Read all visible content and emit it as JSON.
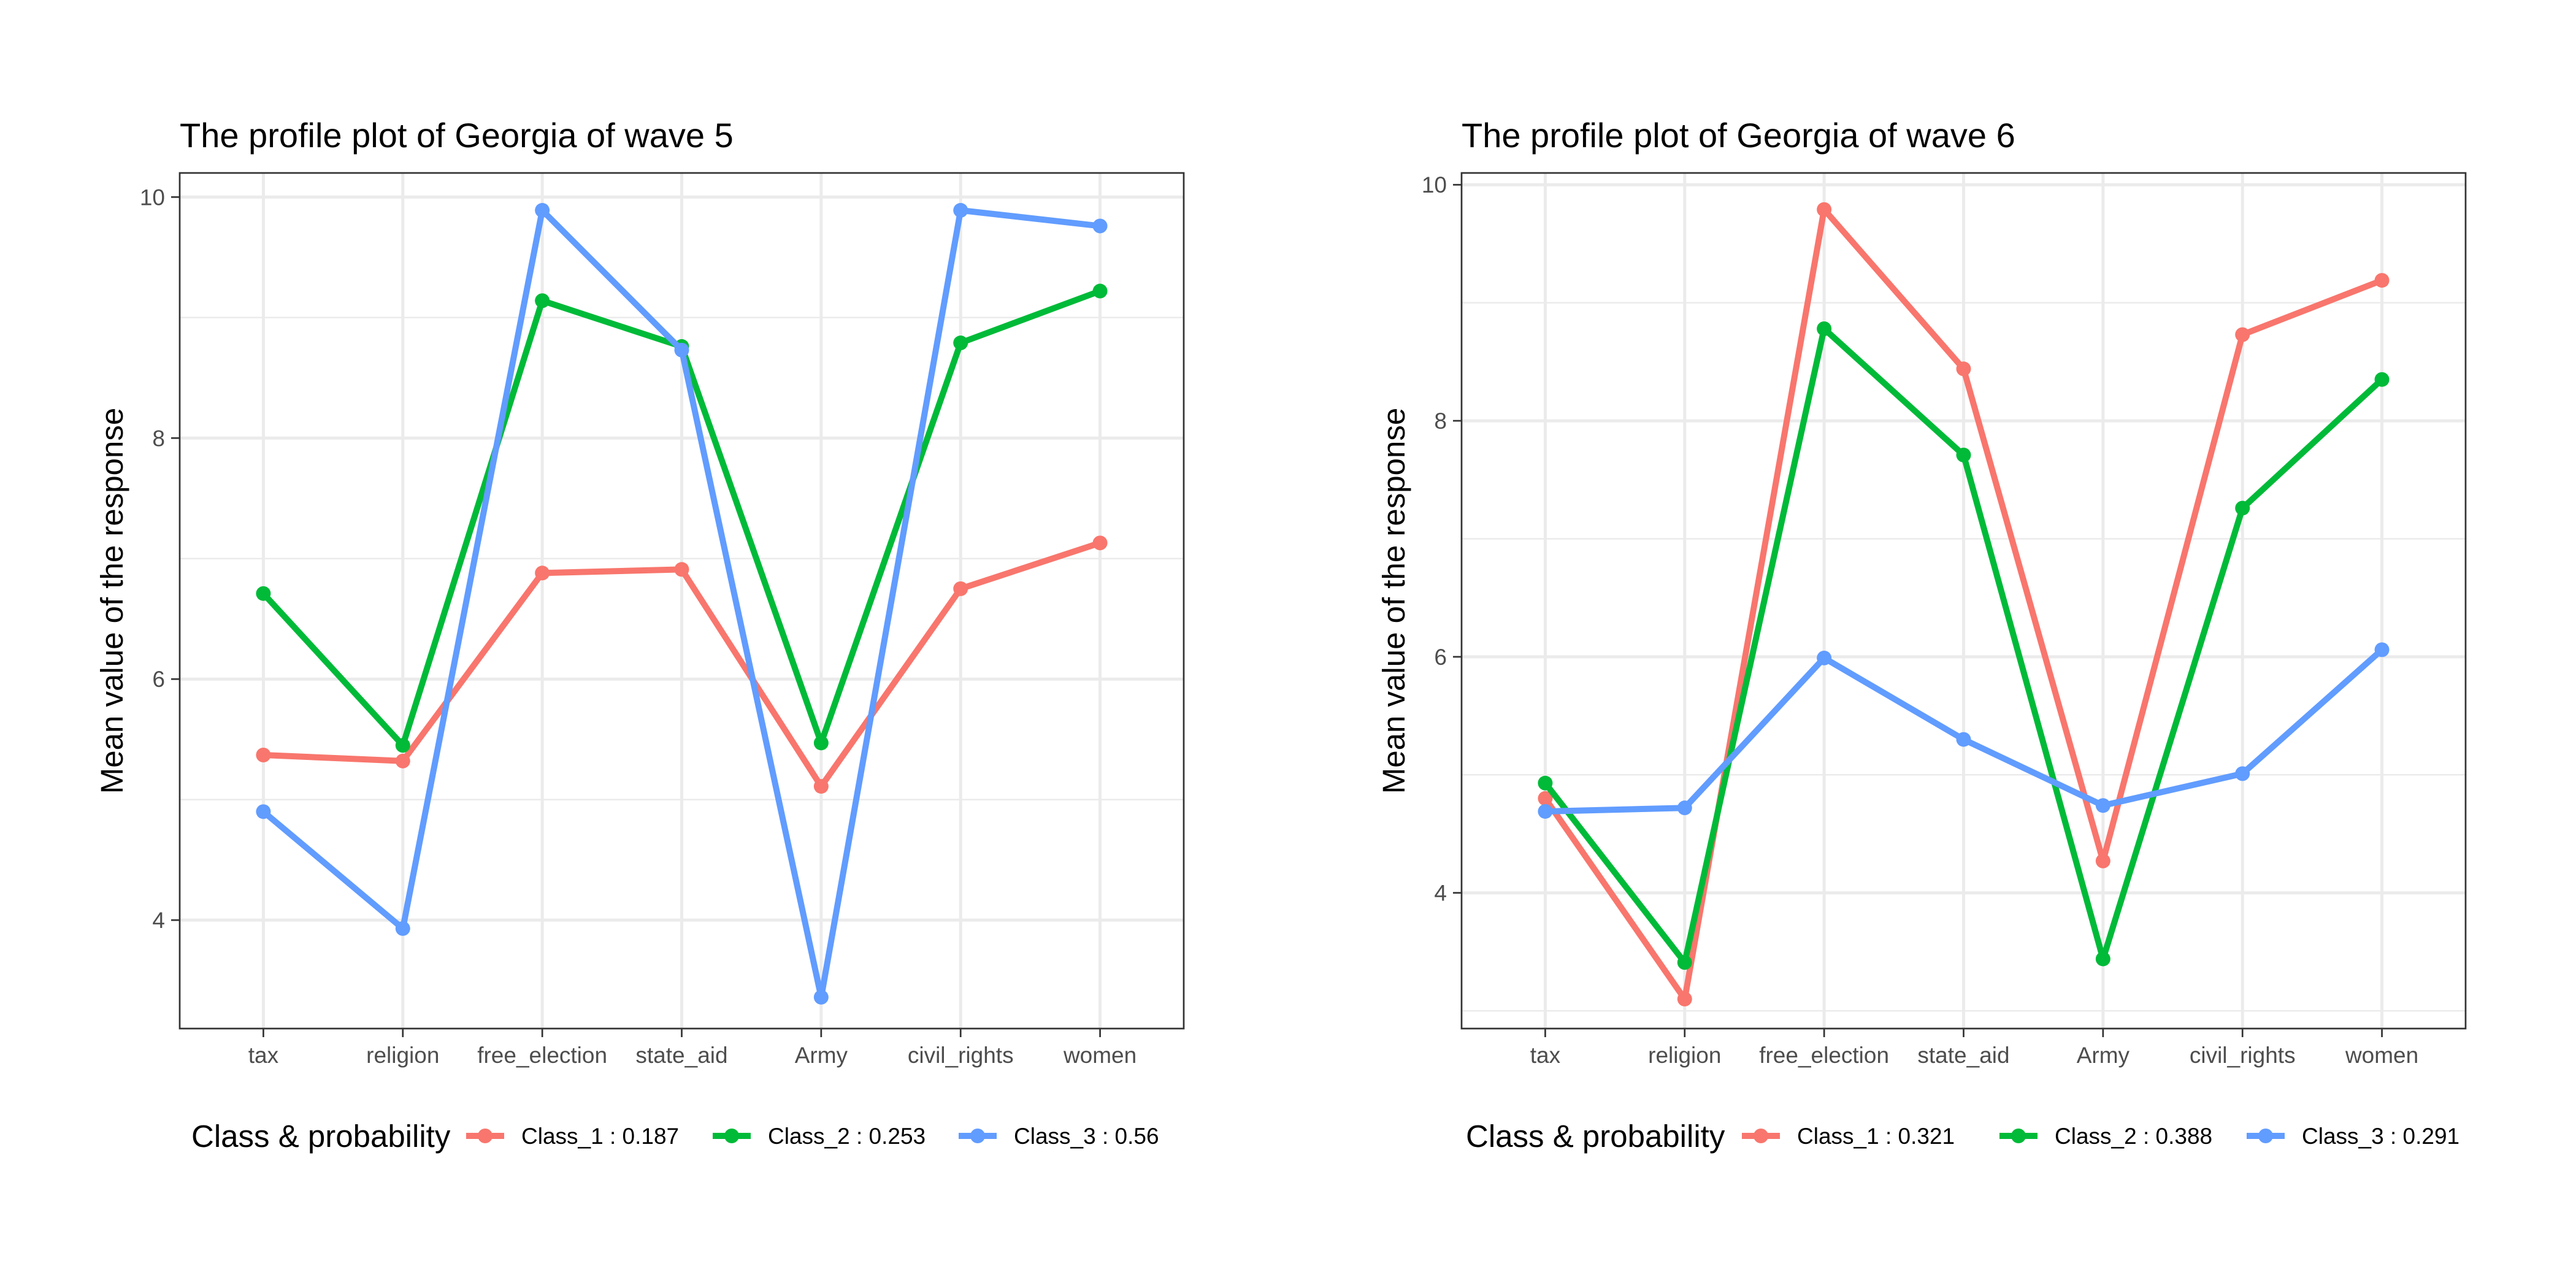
{
  "chart_data": [
    {
      "type": "line",
      "title": "The profile plot of Georgia of wave 5",
      "xlabel": "",
      "ylabel": "Mean value of the response",
      "categories": [
        "tax",
        "religion",
        "free_election",
        "state_aid",
        "Army",
        "civil_rights",
        "women"
      ],
      "ylim": [
        3.1,
        10.2
      ],
      "yticks": [
        4,
        6,
        8,
        10
      ],
      "grid": true,
      "legend_title": "Class & probability",
      "legend_position": "bottom",
      "series": [
        {
          "name": "Class_1 : 0.187",
          "color": "#F8766D",
          "values": [
            5.37,
            5.32,
            6.88,
            6.91,
            5.11,
            6.75,
            7.13
          ]
        },
        {
          "name": "Class_2 : 0.253",
          "color": "#00BA38",
          "values": [
            6.71,
            5.45,
            9.14,
            8.76,
            5.47,
            8.79,
            9.22
          ]
        },
        {
          "name": "Class_3 : 0.56",
          "color": "#619CFF",
          "values": [
            4.9,
            3.93,
            9.89,
            8.73,
            3.36,
            9.89,
            9.76
          ]
        }
      ]
    },
    {
      "type": "line",
      "title": "The profile plot of Georgia of wave 6",
      "xlabel": "",
      "ylabel": "Mean value of the response",
      "categories": [
        "tax",
        "religion",
        "free_election",
        "state_aid",
        "Army",
        "civil_rights",
        "women"
      ],
      "ylim": [
        2.85,
        10.1
      ],
      "yticks": [
        4,
        6,
        8,
        10
      ],
      "grid": true,
      "legend_title": "Class & probability",
      "legend_position": "bottom",
      "series": [
        {
          "name": "Class_1 : 0.321",
          "color": "#F8766D",
          "values": [
            4.8,
            3.1,
            9.79,
            8.44,
            4.27,
            8.73,
            9.19
          ]
        },
        {
          "name": "Class_2 : 0.388",
          "color": "#00BA38",
          "values": [
            4.93,
            3.41,
            8.78,
            7.71,
            3.44,
            7.26,
            8.35
          ]
        },
        {
          "name": "Class_3 : 0.291",
          "color": "#619CFF",
          "values": [
            4.69,
            4.72,
            5.99,
            5.3,
            4.74,
            5.01,
            6.06
          ]
        }
      ]
    }
  ]
}
